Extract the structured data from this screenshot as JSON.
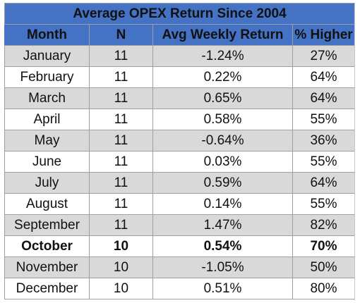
{
  "chart_data": {
    "type": "table",
    "title": "Average OPEX Return Since 2004",
    "columns": [
      "Month",
      "N",
      "Avg Weekly Return",
      "% Higher"
    ],
    "rows": [
      {
        "month": "January",
        "n": "11",
        "avg": "-1.24%",
        "pct": "27%",
        "bold": false
      },
      {
        "month": "February",
        "n": "11",
        "avg": "0.22%",
        "pct": "64%",
        "bold": false
      },
      {
        "month": "March",
        "n": "11",
        "avg": "0.65%",
        "pct": "64%",
        "bold": false
      },
      {
        "month": "April",
        "n": "11",
        "avg": "0.58%",
        "pct": "55%",
        "bold": false
      },
      {
        "month": "May",
        "n": "11",
        "avg": "-0.64%",
        "pct": "36%",
        "bold": false
      },
      {
        "month": "June",
        "n": "11",
        "avg": "0.03%",
        "pct": "55%",
        "bold": false
      },
      {
        "month": "July",
        "n": "11",
        "avg": "0.59%",
        "pct": "64%",
        "bold": false
      },
      {
        "month": "August",
        "n": "11",
        "avg": "0.14%",
        "pct": "55%",
        "bold": false
      },
      {
        "month": "September",
        "n": "11",
        "avg": "1.47%",
        "pct": "82%",
        "bold": false
      },
      {
        "month": "October",
        "n": "10",
        "avg": "0.54%",
        "pct": "70%",
        "bold": true
      },
      {
        "month": "November",
        "n": "10",
        "avg": "-1.05%",
        "pct": "50%",
        "bold": false
      },
      {
        "month": "December",
        "n": "10",
        "avg": "0.51%",
        "pct": "80%",
        "bold": false
      }
    ],
    "colors": {
      "header_bg": "#4472c4",
      "header_text": "#ffffff",
      "band_row_bg": "#d9d9d9",
      "plain_row_bg": "#ffffff"
    }
  }
}
